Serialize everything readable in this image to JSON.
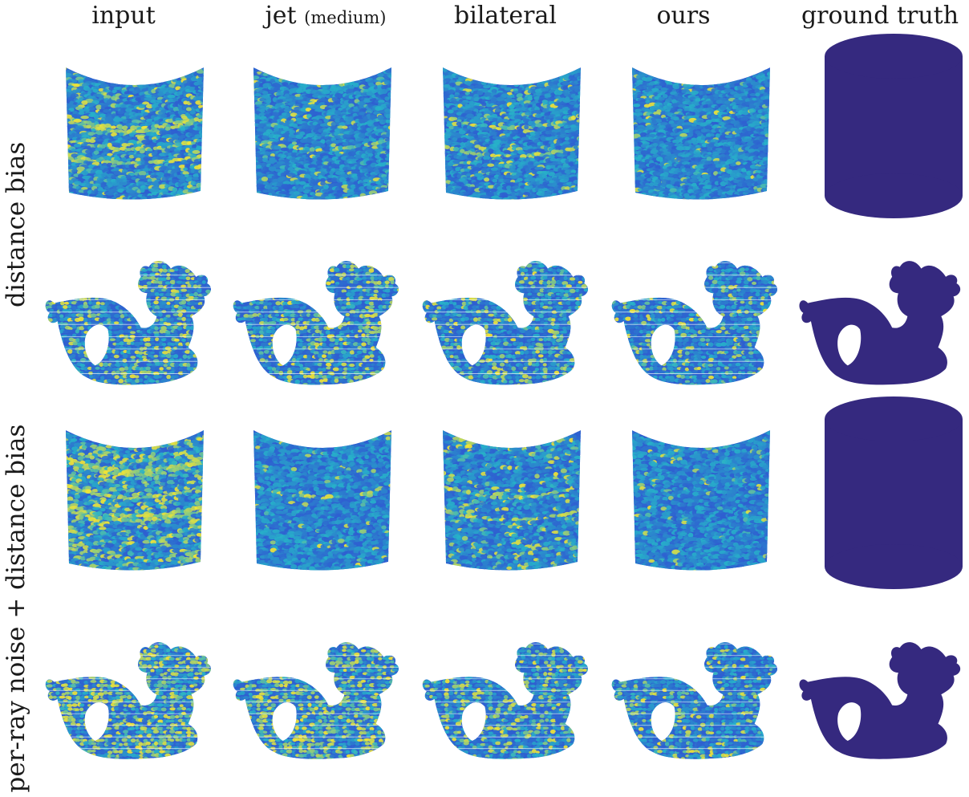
{
  "figure": {
    "columns": [
      {
        "main": "input",
        "sub": ""
      },
      {
        "main": "jet ",
        "sub": "(medium)"
      },
      {
        "main": "bilateral",
        "sub": ""
      },
      {
        "main": "ours",
        "sub": ""
      },
      {
        "main": "ground truth",
        "sub": ""
      }
    ],
    "row_groups": [
      {
        "label": "distance bias"
      },
      {
        "label": "per-ray noise + distance bias"
      }
    ],
    "colors": {
      "low": "#2f5fd0",
      "mid": "#27b3c9",
      "high": "#f6e631",
      "ground_truth": "#35297f"
    }
  }
}
